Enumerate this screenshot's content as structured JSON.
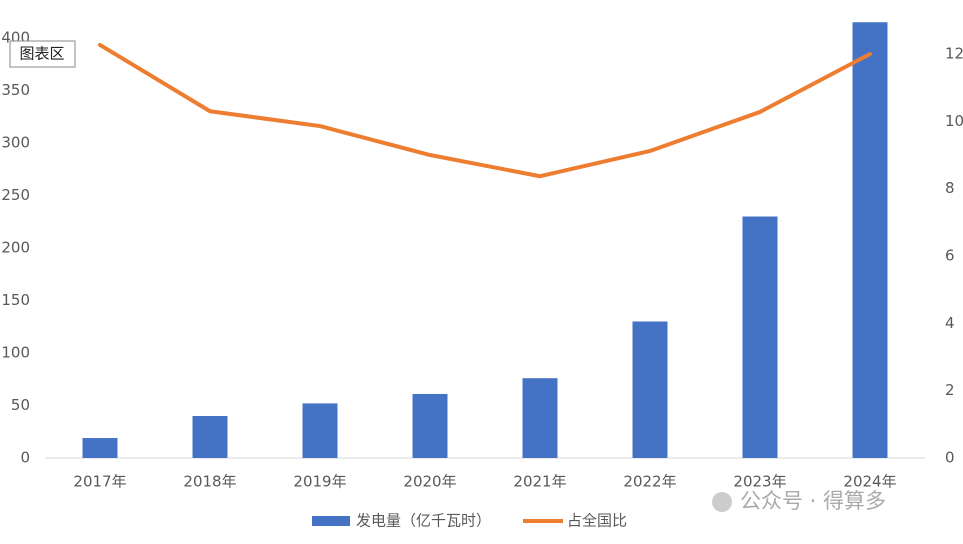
{
  "chart_data": {
    "type": "bar-line",
    "categories": [
      "2017年",
      "2018年",
      "2019年",
      "2020年",
      "2021年",
      "2022年",
      "2023年",
      "2024年"
    ],
    "series": [
      {
        "name": "发电量（亿千瓦时）",
        "type": "bar",
        "color": "#4472c4",
        "values": [
          19,
          40,
          52,
          61,
          76,
          130,
          230,
          415
        ]
      },
      {
        "name": "占全国比",
        "type": "line",
        "axis": "y2",
        "color": "#ed7d31",
        "values": [
          12.27,
          10.3,
          9.86,
          9.0,
          8.37,
          9.12,
          10.28,
          12.0
        ]
      }
    ],
    "ylim": [
      0,
      420
    ],
    "yticks": [
      0,
      50,
      100,
      150,
      200,
      250,
      300,
      350,
      400
    ],
    "y2lim": [
      0,
      13.1
    ],
    "y2ticks": [
      0,
      2,
      4,
      6,
      8,
      10,
      12
    ],
    "annotations": [
      "图表区",
      "公众号 · 得算多"
    ]
  }
}
